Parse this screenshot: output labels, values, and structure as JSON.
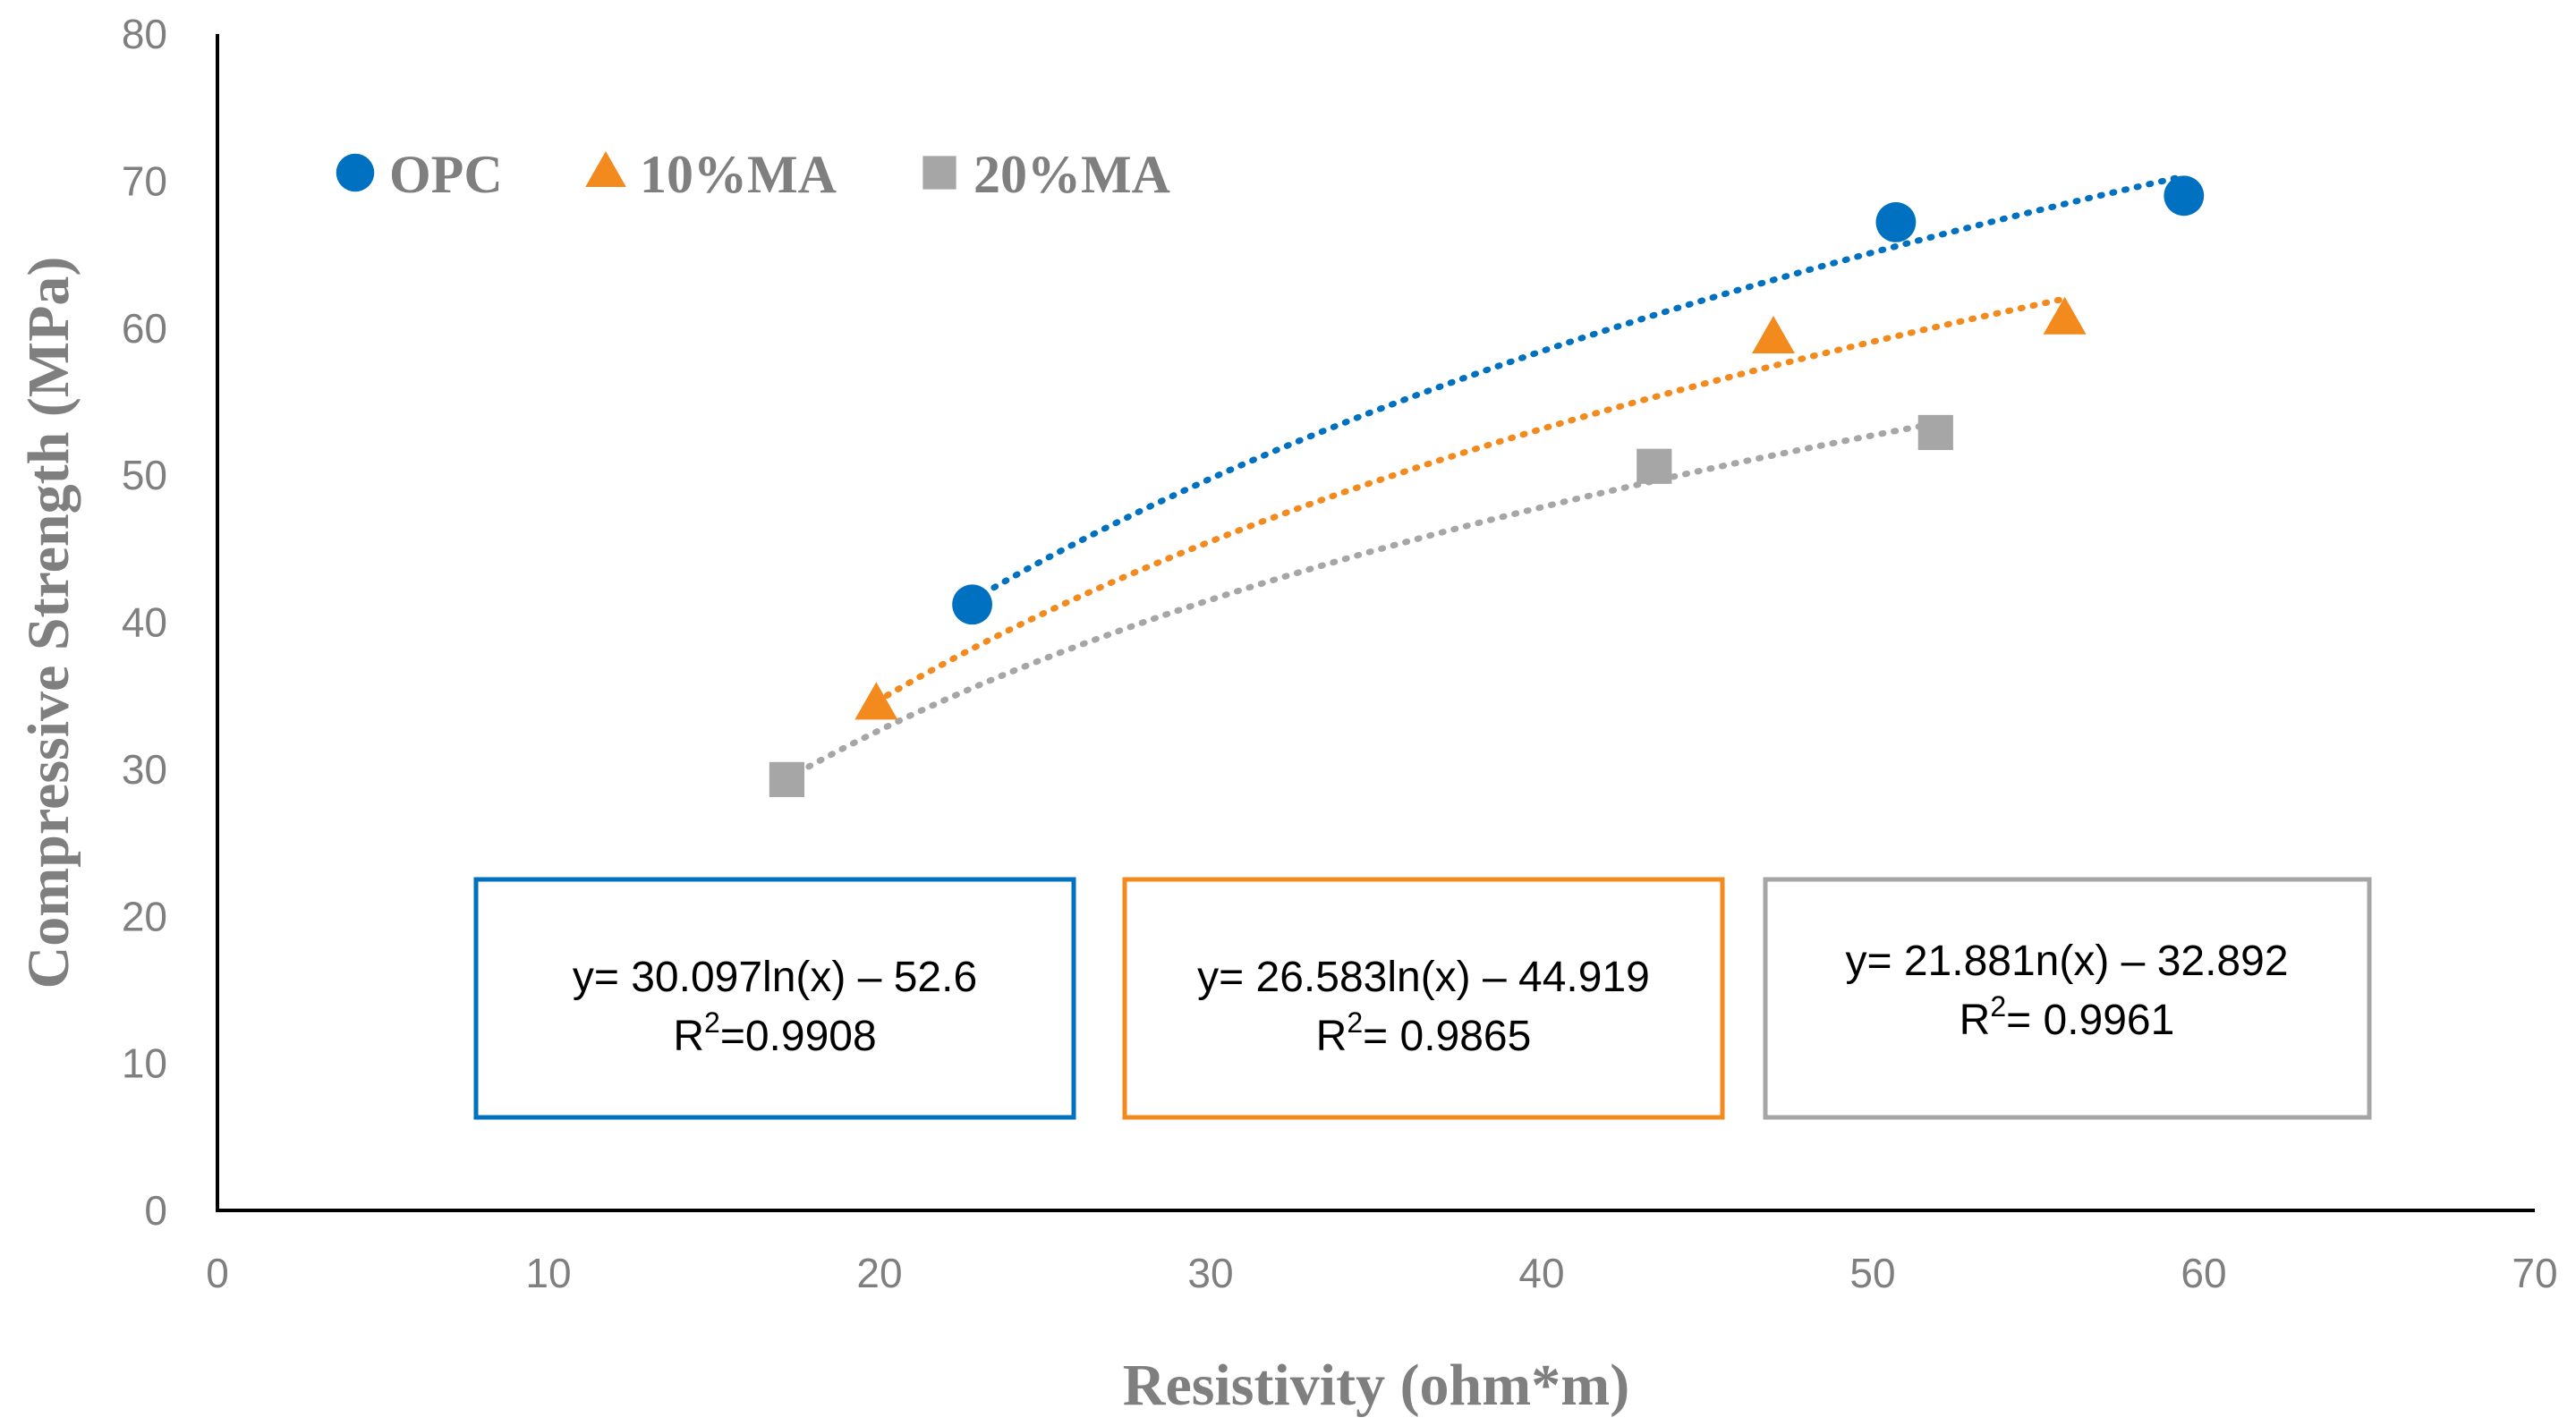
{
  "chart_data": {
    "type": "scatter",
    "title": "",
    "xlabel": "Resistivity (ohm*m)",
    "ylabel": "Compressive Strength (MPa)",
    "xlim": [
      0,
      70
    ],
    "ylim": [
      0,
      80
    ],
    "x_ticks": [
      "0",
      "10",
      "20",
      "30",
      "40",
      "50",
      "60",
      "70"
    ],
    "y_ticks": [
      "0",
      "10",
      "20",
      "30",
      "40",
      "50",
      "60",
      "70",
      "80"
    ],
    "grid": false,
    "legend_position": "top-left",
    "series": [
      {
        "name": "OPC",
        "marker": "circle",
        "color": "#0070C0",
        "points": [
          [
            22.8,
            41.2
          ],
          [
            50.7,
            67.2
          ],
          [
            59.4,
            69.0
          ]
        ],
        "trend": {
          "type": "log",
          "a": 30.097,
          "b": -52.6,
          "x_range": [
            22.8,
            59.4
          ]
        },
        "equation": "y= 30.097ln(x) – 52.6",
        "r2_label": "R",
        "r2_sup": "2",
        "r2_value": "=0.9908"
      },
      {
        "name": "10%MA",
        "marker": "triangle",
        "color": "#F28A1E",
        "points": [
          [
            19.9,
            34.4
          ],
          [
            47.0,
            59.3
          ],
          [
            55.8,
            60.6
          ]
        ],
        "trend": {
          "type": "log",
          "a": 26.583,
          "b": -44.919,
          "x_range": [
            19.9,
            55.8
          ]
        },
        "equation": "y= 26.583ln(x) – 44.919",
        "r2_label": "R",
        "r2_sup": "2",
        "r2_value": "= 0.9865"
      },
      {
        "name": "20%MA",
        "marker": "square",
        "color": "#A6A6A6",
        "points": [
          [
            17.2,
            29.3
          ],
          [
            43.4,
            50.6
          ],
          [
            51.9,
            52.9
          ]
        ],
        "trend": {
          "type": "log",
          "a": 21.88,
          "b": -32.892,
          "x_range": [
            17.2,
            51.9
          ]
        },
        "equation": "y= 21.881n(x) – 32.892",
        "r2_label": "R",
        "r2_sup": "2",
        "r2_value": "= 0.9961"
      }
    ]
  }
}
